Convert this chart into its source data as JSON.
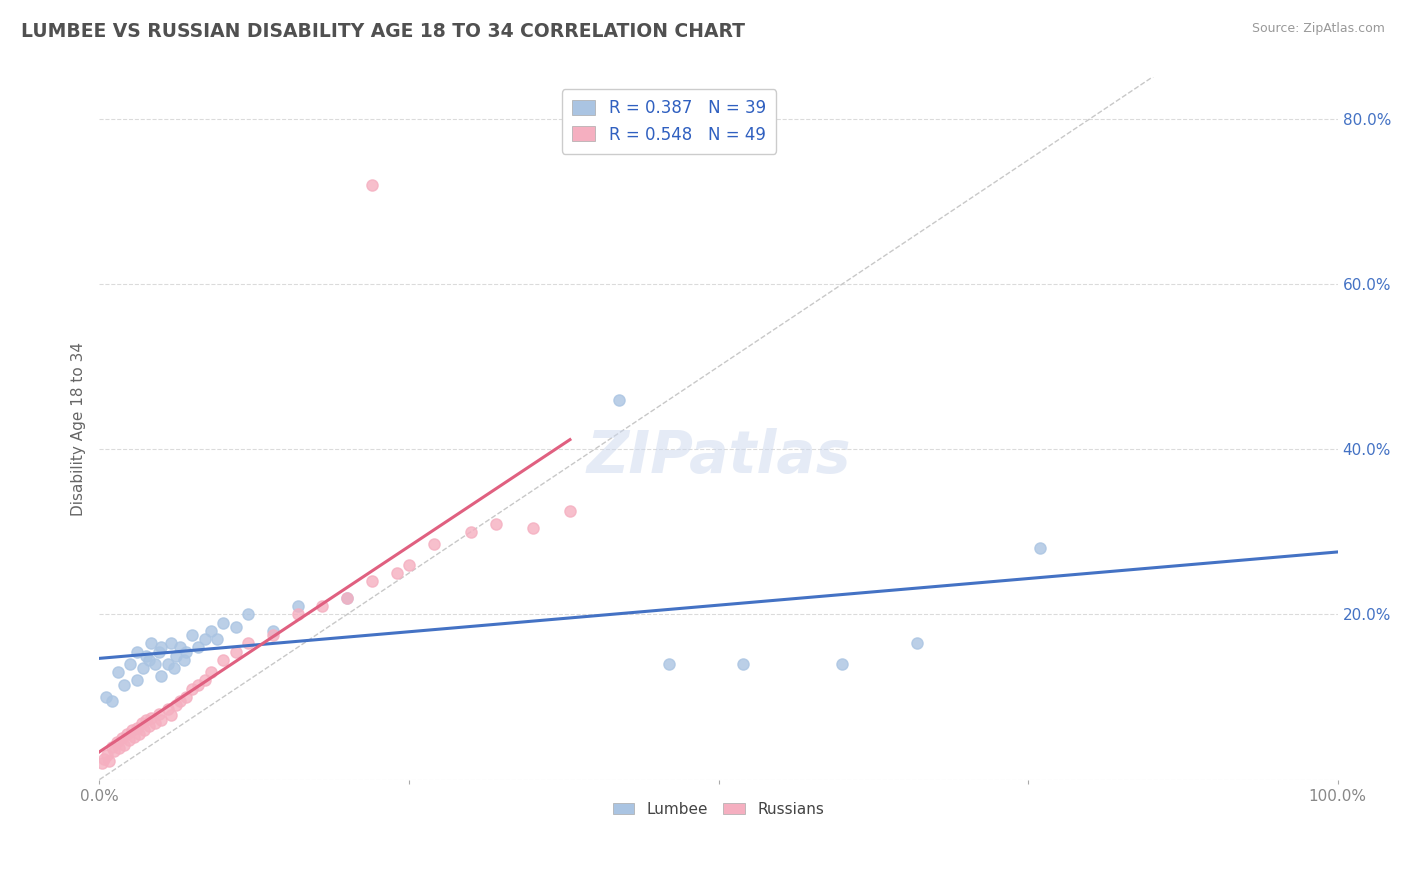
{
  "title": "LUMBEE VS RUSSIAN DISABILITY AGE 18 TO 34 CORRELATION CHART",
  "source": "Source: ZipAtlas.com",
  "ylabel": "Disability Age 18 to 34",
  "xlim": [
    0.0,
    1.0
  ],
  "ylim": [
    0.0,
    0.85
  ],
  "lumbee_R": 0.387,
  "lumbee_N": 39,
  "russian_R": 0.548,
  "russian_N": 49,
  "lumbee_color": "#aac4e2",
  "russian_color": "#f5afc0",
  "lumbee_line_color": "#4472c4",
  "russian_line_color": "#e06080",
  "diagonal_color": "#c8c8c8",
  "lumbee_x": [
    0.005,
    0.01,
    0.015,
    0.02,
    0.025,
    0.03,
    0.03,
    0.035,
    0.038,
    0.04,
    0.042,
    0.045,
    0.048,
    0.05,
    0.05,
    0.055,
    0.058,
    0.06,
    0.062,
    0.065,
    0.068,
    0.07,
    0.075,
    0.08,
    0.085,
    0.09,
    0.095,
    0.1,
    0.11,
    0.12,
    0.14,
    0.16,
    0.2,
    0.42,
    0.46,
    0.52,
    0.6,
    0.66,
    0.76
  ],
  "lumbee_y": [
    0.1,
    0.095,
    0.13,
    0.115,
    0.14,
    0.12,
    0.155,
    0.135,
    0.15,
    0.145,
    0.165,
    0.14,
    0.155,
    0.125,
    0.16,
    0.14,
    0.165,
    0.135,
    0.15,
    0.16,
    0.145,
    0.155,
    0.175,
    0.16,
    0.17,
    0.18,
    0.17,
    0.19,
    0.185,
    0.2,
    0.18,
    0.21,
    0.22,
    0.46,
    0.14,
    0.14,
    0.14,
    0.165,
    0.28
  ],
  "russian_x": [
    0.002,
    0.004,
    0.006,
    0.008,
    0.01,
    0.012,
    0.014,
    0.016,
    0.018,
    0.02,
    0.022,
    0.024,
    0.026,
    0.028,
    0.03,
    0.032,
    0.034,
    0.036,
    0.038,
    0.04,
    0.042,
    0.045,
    0.048,
    0.05,
    0.055,
    0.058,
    0.062,
    0.065,
    0.07,
    0.075,
    0.08,
    0.085,
    0.09,
    0.1,
    0.11,
    0.12,
    0.14,
    0.16,
    0.18,
    0.2,
    0.22,
    0.24,
    0.25,
    0.27,
    0.3,
    0.32,
    0.35,
    0.38,
    0.22
  ],
  "russian_y": [
    0.02,
    0.025,
    0.03,
    0.022,
    0.04,
    0.035,
    0.045,
    0.038,
    0.05,
    0.042,
    0.055,
    0.048,
    0.06,
    0.052,
    0.062,
    0.055,
    0.068,
    0.06,
    0.072,
    0.065,
    0.075,
    0.068,
    0.08,
    0.072,
    0.085,
    0.078,
    0.09,
    0.095,
    0.1,
    0.11,
    0.115,
    0.12,
    0.13,
    0.145,
    0.155,
    0.165,
    0.175,
    0.2,
    0.21,
    0.22,
    0.24,
    0.25,
    0.26,
    0.285,
    0.3,
    0.31,
    0.305,
    0.325,
    0.72
  ],
  "background_color": "#ffffff",
  "grid_color": "#d8d8d8",
  "title_color": "#505050",
  "tick_color": "#888888",
  "ytick_color": "#4472c4",
  "legend_label_color": "#3060c0"
}
